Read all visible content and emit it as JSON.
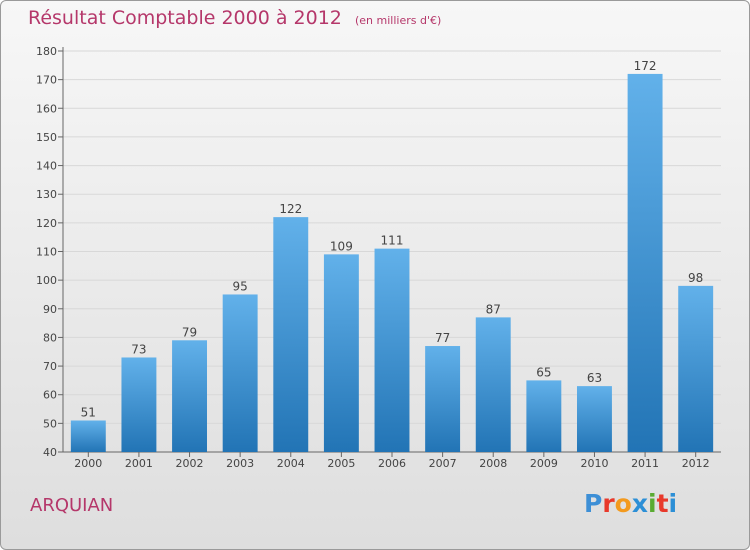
{
  "header": {
    "title": "Résultat Comptable 2000 à 2012",
    "subtitle": "(en milliers d'€)"
  },
  "footer": {
    "city": "ARQUIAN",
    "logo_letters": [
      "P",
      "r",
      "o",
      "x",
      "i",
      "t",
      "i"
    ]
  },
  "colors": {
    "title": "#b5376a",
    "bar_light": "#62b1ea",
    "bar_dark": "#2274b5",
    "logo": [
      "#3d8fd6",
      "#e8392b",
      "#f39a1e",
      "#2c8fd6",
      "#5aab32",
      "#e8392b",
      "#2c8fd6"
    ]
  },
  "chart_data": {
    "type": "bar",
    "title": "Résultat Comptable 2000 à 2012",
    "subtitle": "(en milliers d'€)",
    "xlabel": "",
    "ylabel": "",
    "categories": [
      "2000",
      "2001",
      "2002",
      "2003",
      "2004",
      "2005",
      "2006",
      "2007",
      "2008",
      "2009",
      "2010",
      "2011",
      "2012"
    ],
    "values": [
      51,
      73,
      79,
      95,
      122,
      109,
      111,
      77,
      87,
      65,
      63,
      172,
      98
    ],
    "ylim": [
      40,
      180
    ],
    "yticks": [
      40,
      50,
      60,
      70,
      80,
      90,
      100,
      110,
      120,
      130,
      140,
      150,
      160,
      170,
      180
    ],
    "grid": true
  }
}
